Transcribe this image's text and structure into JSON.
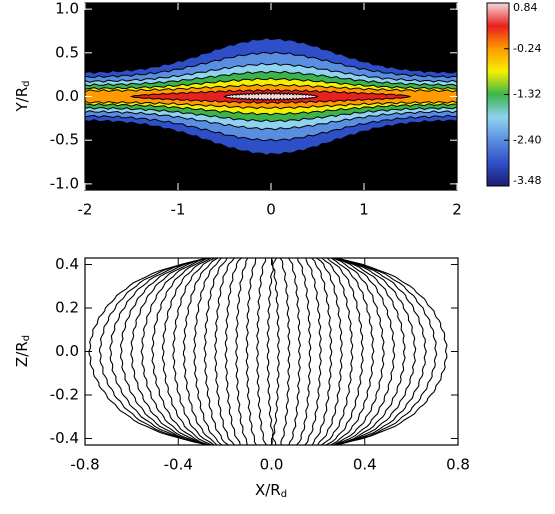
{
  "chart_data": [
    {
      "type": "contourf",
      "xlim": [
        -2,
        2
      ],
      "ylim": [
        -1.07,
        1.07
      ],
      "xticks": [
        -2,
        -1,
        {
          "value": 0,
          "label": "0"
        },
        1,
        2
      ],
      "yticks": [
        {
          "value": -1,
          "label": "-1.0"
        },
        -0.5,
        {
          "value": 0,
          "label": "0.0"
        },
        0.5,
        {
          "value": 1,
          "label": "1.0"
        }
      ],
      "y_label": {
        "text": "Y/R",
        "subscript": "d"
      },
      "colorbar": {
        "lim": [
          -3.48,
          0.84
        ],
        "ticks": [
          0.84,
          -0.24,
          -1.32,
          {
            "value": -2.4,
            "label": "-2.40"
          },
          -3.48
        ],
        "colors": [
          "#1c1c70",
          "#2f4fc8",
          "#5a8ee0",
          "#8fd3f0",
          "#3cb44b",
          "#f5f000",
          "#ff9a00",
          "#e82020",
          "#f4d8d8"
        ]
      }
    },
    {
      "type": "contour",
      "xlim": [
        -0.8,
        0.8
      ],
      "ylim": [
        -0.43,
        0.43
      ],
      "xticks": [
        -0.8,
        -0.4,
        {
          "value": 0,
          "label": "0.0"
        },
        0.4,
        0.8
      ],
      "yticks": [
        -0.4,
        -0.2,
        {
          "value": 0,
          "label": "0.0"
        },
        0.2,
        0.4
      ],
      "x_label": {
        "text": "X/R",
        "subscript": "d"
      },
      "y_label": {
        "text": "Z/R",
        "subscript": "d"
      },
      "color": "#000000"
    }
  ]
}
